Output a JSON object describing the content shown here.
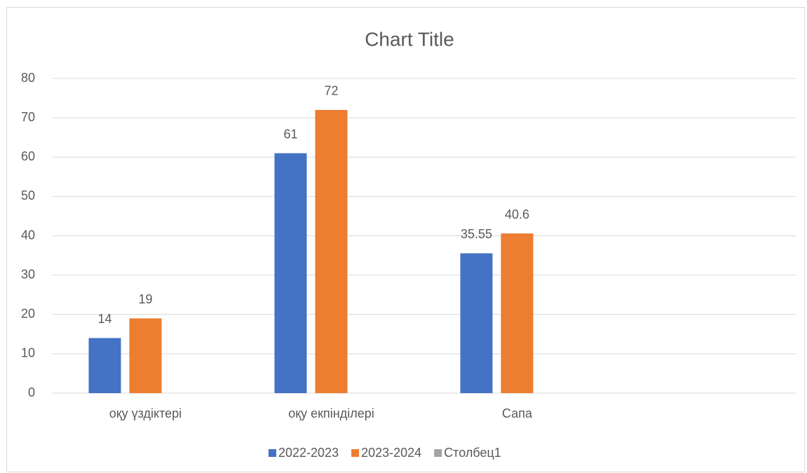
{
  "chart_data": {
    "type": "bar",
    "title": "Chart Title",
    "categories": [
      "оқу үздіктері",
      "оқу екпінділері",
      "Сапа",
      null
    ],
    "series": [
      {
        "name": "2022-2023",
        "color": "#4472c4",
        "values": [
          14,
          61,
          35.55,
          null
        ]
      },
      {
        "name": "2023-2024",
        "color": "#ed7d31",
        "values": [
          19,
          72,
          40.6,
          null
        ]
      },
      {
        "name": "Столбец1",
        "color": "#a5a5a5",
        "values": [
          null,
          null,
          null,
          null
        ]
      }
    ],
    "ylim": [
      0,
      80
    ],
    "yticks": [
      0,
      10,
      20,
      30,
      40,
      50,
      60,
      70,
      80
    ],
    "grid": true,
    "legend": "bottom"
  }
}
